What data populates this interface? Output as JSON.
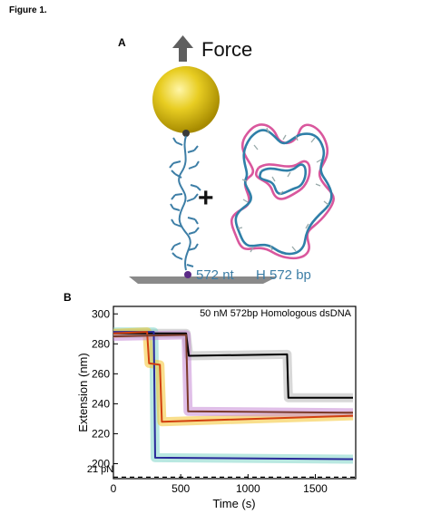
{
  "figure_title": "Figure 1.",
  "panel_a": {
    "label": "A",
    "force_label": "Force",
    "plus": "+",
    "ssdna_label": "572 nt",
    "dsdna_label": "H 572 bp",
    "colors": {
      "bead": "#e3c61a",
      "ssdna": "#3d7ea6",
      "dsdna_a": "#d9579d",
      "dsdna_b": "#2f7fa8",
      "arrow": "#5f5f5f",
      "surface": "#8a8a8a",
      "anchor": "#5b2a86"
    }
  },
  "panel_b": {
    "label": "B",
    "chart_data": {
      "type": "line",
      "title": "50 nM 572bp Homologous dsDNA",
      "xlabel": "Time (s)",
      "ylabel": "Extension (nm)",
      "xlim": [
        0,
        1800
      ],
      "ylim": [
        190,
        305
      ],
      "xticks": [
        0,
        500,
        1000,
        1500
      ],
      "yticks": [
        200,
        220,
        240,
        260,
        280,
        300
      ],
      "grid": false,
      "annotations": [
        {
          "text": "21 pN",
          "x": 60,
          "y": 193
        }
      ],
      "reference_line": {
        "y": 191,
        "style": "dashed"
      },
      "series": [
        {
          "color": "#000000",
          "band": "#b8b8b8",
          "values": [
            [
              0,
              287
            ],
            [
              540,
              287
            ],
            [
              560,
              272
            ],
            [
              1290,
              273
            ],
            [
              1300,
              244
            ],
            [
              1780,
              244
            ]
          ]
        },
        {
          "color": "#2a2a9a",
          "band": "#7fd6c8",
          "values": [
            [
              0,
              288
            ],
            [
              300,
              288
            ],
            [
              310,
              204
            ],
            [
              1780,
              203
            ]
          ]
        },
        {
          "color": "#d2400f",
          "band": "#f4c430",
          "values": [
            [
              0,
              287
            ],
            [
              250,
              288
            ],
            [
              265,
              267
            ],
            [
              345,
              266
            ],
            [
              360,
              228
            ],
            [
              1780,
              232
            ]
          ]
        },
        {
          "color": "#7a3a2a",
          "band": "#c68ad6",
          "values": [
            [
              0,
              285
            ],
            [
              540,
              286
            ],
            [
              555,
              235
            ],
            [
              1780,
              234
            ]
          ]
        }
      ]
    }
  }
}
